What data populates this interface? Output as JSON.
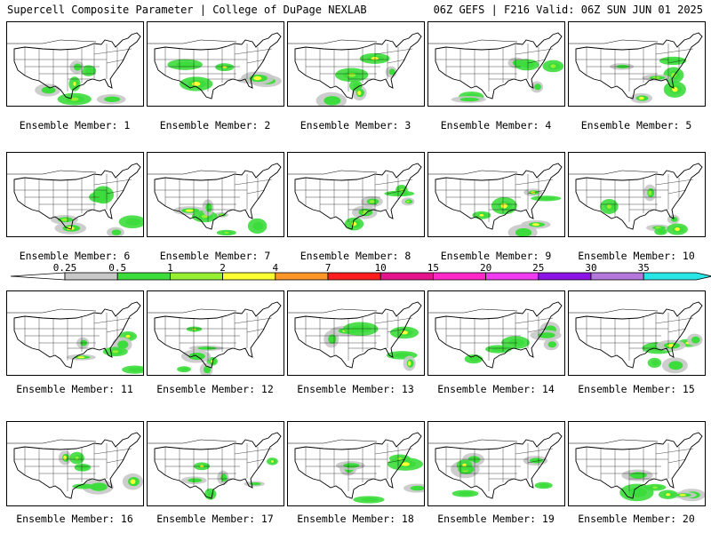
{
  "header": {
    "title": "Supercell Composite Parameter | College of DuPage NEXLAB",
    "run_info": "06Z GEFS | F216 Valid: 06Z SUN JUN 01 2025"
  },
  "member_label_prefix": "Ensemble Member:",
  "members": [
    1,
    2,
    3,
    4,
    5,
    6,
    7,
    8,
    9,
    10,
    11,
    12,
    13,
    14,
    15,
    16,
    17,
    18,
    19,
    20
  ],
  "colorbar": {
    "ticks": [
      "0.25",
      "0.5",
      "1",
      "2",
      "4",
      "7",
      "10",
      "15",
      "20",
      "25",
      "30",
      "35"
    ],
    "colors": [
      "#c8c8c8",
      "#3cdc3c",
      "#96ef32",
      "#ffff32",
      "#ff9628",
      "#ff1e1e",
      "#e6148c",
      "#ff28c8",
      "#f03cf0",
      "#8c14e6",
      "#b478dc",
      "#28e6e6"
    ]
  }
}
